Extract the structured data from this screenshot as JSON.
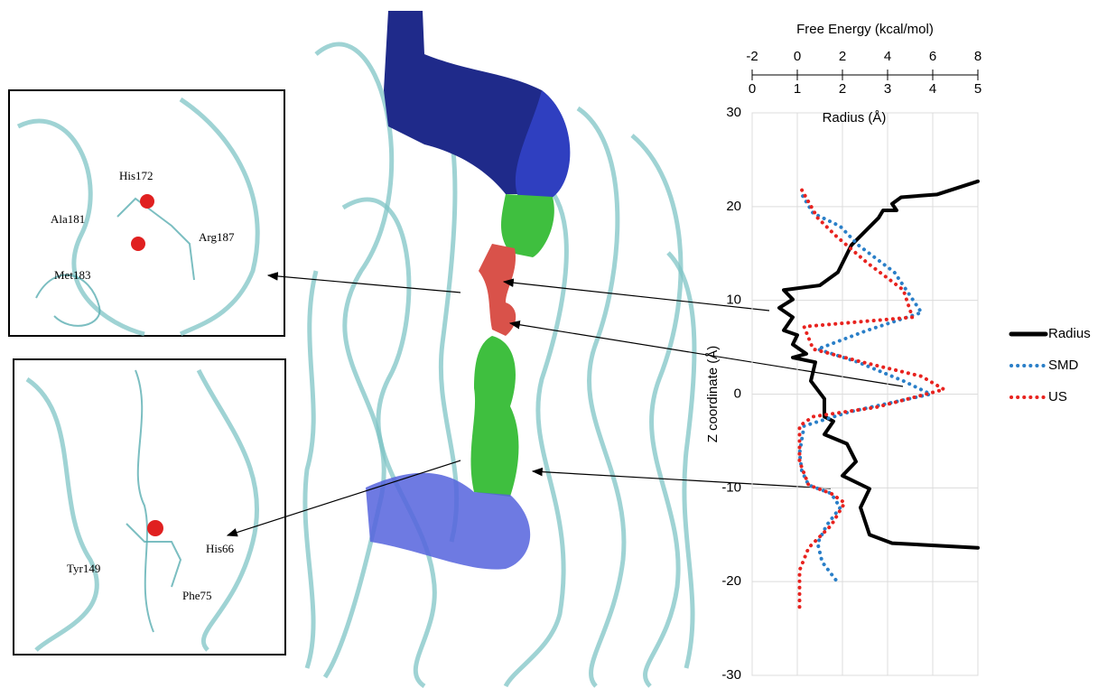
{
  "chart_data": {
    "type": "line",
    "ylabel": "Z coordinate (Å)",
    "xlabel": "Radius (Å)",
    "x2label": "Free Energy (kcal/mol)",
    "ylim": [
      -30,
      30
    ],
    "yticks": [
      -30,
      -20,
      -10,
      0,
      10,
      20,
      30
    ],
    "xlim": [
      0,
      5
    ],
    "xticks": [
      0,
      1,
      2,
      3,
      4,
      5
    ],
    "x2lim": [
      -2,
      8
    ],
    "x2ticks": [
      -2,
      0,
      2,
      4,
      6,
      8
    ],
    "grid": true,
    "legend": "right",
    "series": [
      {
        "name": "Radius",
        "color": "#000000",
        "style": "solid",
        "axis": "x",
        "x": [
          5.0,
          4.1,
          3.3,
          3.1,
          3.2,
          2.9,
          2.8,
          2.2,
          1.9,
          1.5,
          0.7,
          0.9,
          0.6,
          0.9,
          0.7,
          1.0,
          0.9,
          1.2,
          0.9,
          1.4,
          1.3,
          1.6,
          1.6,
          1.8,
          1.6,
          2.1,
          2.3,
          2.0,
          2.6,
          2.4,
          2.6,
          3.1,
          5.0
        ],
        "y": [
          22.7,
          21.3,
          21.0,
          20.3,
          19.6,
          19.6,
          18.8,
          15.9,
          13.0,
          11.6,
          11.1,
          10.1,
          9.2,
          8.2,
          6.8,
          6.3,
          5.3,
          4.3,
          3.9,
          3.4,
          1.4,
          -0.5,
          -2.4,
          -2.9,
          -4.3,
          -5.3,
          -7.2,
          -8.7,
          -10.1,
          -12.1,
          -15.0,
          -15.9,
          -16.4
        ]
      },
      {
        "name": "SMD",
        "color": "#2a7fc8",
        "style": "dotted",
        "axis": "x2",
        "x": [
          1.7,
          1.1,
          0.9,
          1.3,
          1.9,
          1.5,
          0.5,
          0.2,
          0.1,
          0.3,
          2.3,
          5.9,
          4.7,
          2.7,
          0.9,
          3.1,
          5.5,
          4.3,
          2.7,
          1.9,
          0.7,
          0.2
        ],
        "y": [
          -19.8,
          -17.9,
          -15.9,
          -14.0,
          -12.1,
          -10.6,
          -9.7,
          -8.2,
          -6.3,
          -3.4,
          -1.9,
          0.0,
          1.4,
          3.4,
          4.8,
          6.8,
          8.7,
          13.0,
          15.9,
          17.9,
          19.3,
          21.3
        ]
      },
      {
        "name": "US",
        "color": "#e8231f",
        "style": "dotted",
        "axis": "x2",
        "x": [
          0.1,
          0.1,
          0.5,
          1.5,
          2.1,
          1.5,
          0.5,
          0.1,
          0.1,
          0.7,
          3.5,
          6.5,
          5.5,
          2.9,
          0.7,
          0.3,
          5.1,
          4.7,
          3.1,
          1.7,
          0.9,
          0.1
        ],
        "y": [
          -22.7,
          -18.8,
          -16.4,
          -14.0,
          -11.6,
          -10.6,
          -9.7,
          -7.2,
          -3.4,
          -2.4,
          -1.4,
          0.5,
          1.9,
          3.4,
          4.8,
          7.2,
          8.2,
          11.1,
          14.0,
          16.9,
          18.8,
          22.2
        ]
      }
    ]
  },
  "insets": [
    [
      "His172",
      "Ala181",
      "Arg187",
      "Met183"
    ],
    [
      "His66",
      "Tyr149",
      "Phe75"
    ]
  ]
}
